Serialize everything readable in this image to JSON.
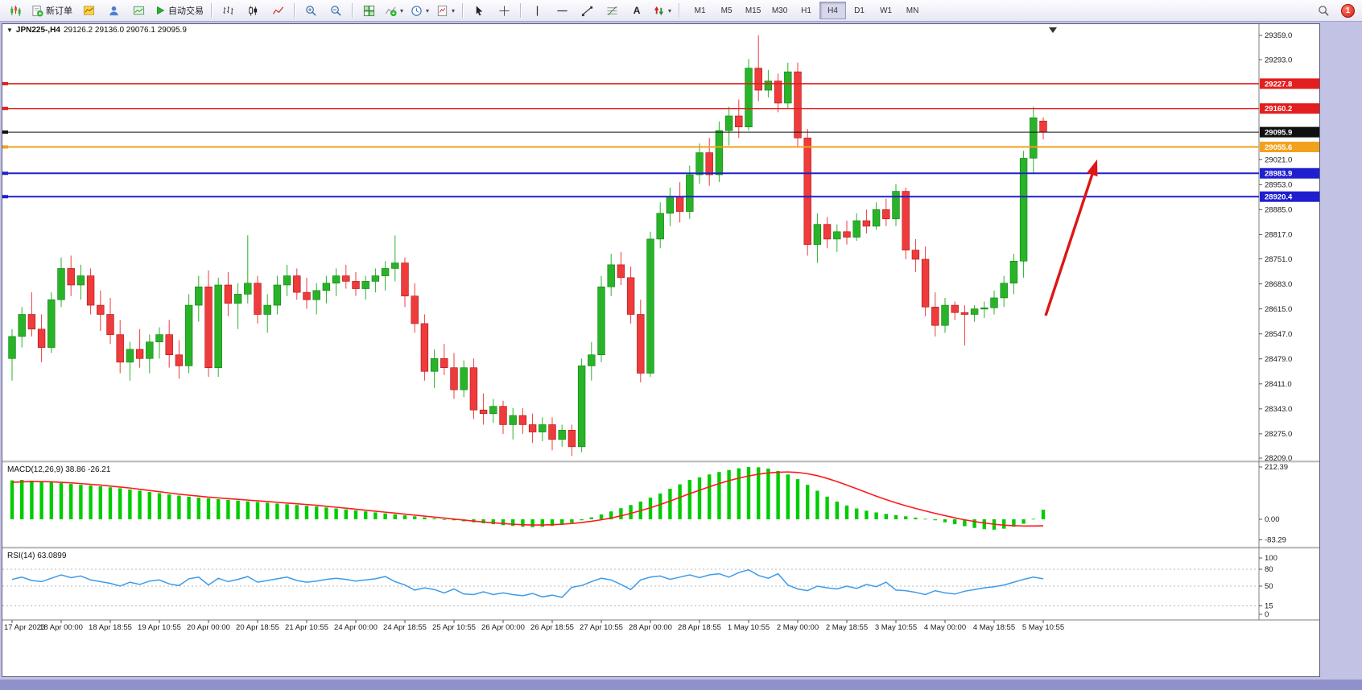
{
  "toolbar": {
    "new_order_label": "新订单",
    "auto_trading_label": "自动交易",
    "text_tool_label": "A",
    "timeframes": [
      "M1",
      "M5",
      "M15",
      "M30",
      "H1",
      "H4",
      "D1",
      "W1",
      "MN"
    ],
    "active_timeframe": "H4",
    "notification_count": "1"
  },
  "chart": {
    "symbol_period": "JPN225-,H4",
    "ohlc_text": "29126.2 29136.0 29076.1 29095.9",
    "title": "JPN225-,H4 29126.2 29136.0 29076.1 29095.9",
    "y_axis": {
      "max": 29359,
      "min": 28209,
      "ticks": [
        29359,
        29293,
        29021,
        28953,
        28885,
        28817,
        28751,
        28683,
        28615,
        28547,
        28479,
        28411,
        28343,
        28275,
        28209
      ]
    },
    "levels": [
      {
        "label": "29227.8",
        "price": 29227.8,
        "color": "#e31e1e",
        "text_color": "#ffffff",
        "width": 1.6
      },
      {
        "label": "29160.2",
        "price": 29160.2,
        "color": "#e31e1e",
        "text_color": "#ffffff",
        "width": 1.6
      },
      {
        "label": "29095.9",
        "price": 29095.9,
        "color": "#101010",
        "text_color": "#ffffff",
        "width": 1
      },
      {
        "label": "29055.6",
        "price": 29055.6,
        "color": "#f2a11c",
        "text_color": "#ffffff",
        "width": 2
      },
      {
        "label": "28983.9",
        "price": 28983.9,
        "color": "#1f1fd0",
        "text_color": "#ffffff",
        "width": 2
      },
      {
        "label": "28920.4",
        "price": 28920.4,
        "color": "#1f1fd0",
        "text_color": "#ffffff",
        "width": 2
      }
    ],
    "annotation_arrow": {
      "color": "#e01515"
    }
  },
  "chart_data": {
    "type": "candlestick",
    "symbol": "JPN225-",
    "timeframe": "H4",
    "up_color": "#29b329",
    "down_color": "#ef3b3b",
    "candles": [
      [
        28480,
        28560,
        28420,
        28540
      ],
      [
        28540,
        28620,
        28510,
        28600
      ],
      [
        28600,
        28660,
        28540,
        28560
      ],
      [
        28560,
        28600,
        28470,
        28510
      ],
      [
        28510,
        28660,
        28495,
        28640
      ],
      [
        28640,
        28755,
        28620,
        28725
      ],
      [
        28725,
        28760,
        28650,
        28680
      ],
      [
        28680,
        28735,
        28640,
        28705
      ],
      [
        28705,
        28725,
        28600,
        28625
      ],
      [
        28625,
        28665,
        28555,
        28600
      ],
      [
        28600,
        28645,
        28520,
        28545
      ],
      [
        28545,
        28585,
        28440,
        28470
      ],
      [
        28470,
        28525,
        28420,
        28505
      ],
      [
        28505,
        28560,
        28455,
        28480
      ],
      [
        28480,
        28545,
        28440,
        28525
      ],
      [
        28525,
        28565,
        28480,
        28545
      ],
      [
        28545,
        28585,
        28455,
        28490
      ],
      [
        28490,
        28530,
        28425,
        28460
      ],
      [
        28460,
        28655,
        28440,
        28625
      ],
      [
        28625,
        28705,
        28580,
        28675
      ],
      [
        28675,
        28720,
        28430,
        28455
      ],
      [
        28455,
        28700,
        28430,
        28680
      ],
      [
        28680,
        28715,
        28595,
        28630
      ],
      [
        28630,
        28685,
        28560,
        28655
      ],
      [
        28655,
        28815,
        28630,
        28685
      ],
      [
        28685,
        28705,
        28575,
        28600
      ],
      [
        28600,
        28655,
        28550,
        28625
      ],
      [
        28625,
        28705,
        28600,
        28680
      ],
      [
        28680,
        28735,
        28650,
        28705
      ],
      [
        28705,
        28725,
        28640,
        28660
      ],
      [
        28660,
        28700,
        28615,
        28640
      ],
      [
        28640,
        28685,
        28600,
        28665
      ],
      [
        28665,
        28705,
        28630,
        28685
      ],
      [
        28685,
        28725,
        28650,
        28705
      ],
      [
        28705,
        28735,
        28670,
        28690
      ],
      [
        28690,
        28715,
        28650,
        28670
      ],
      [
        28670,
        28705,
        28640,
        28690
      ],
      [
        28690,
        28725,
        28660,
        28705
      ],
      [
        28705,
        28745,
        28665,
        28725
      ],
      [
        28725,
        28815,
        28690,
        28740
      ],
      [
        28740,
        28755,
        28620,
        28650
      ],
      [
        28650,
        28685,
        28550,
        28575
      ],
      [
        28575,
        28600,
        28420,
        28445
      ],
      [
        28445,
        28505,
        28400,
        28480
      ],
      [
        28480,
        28520,
        28435,
        28455
      ],
      [
        28455,
        28495,
        28370,
        28395
      ],
      [
        28395,
        28475,
        28375,
        28455
      ],
      [
        28455,
        28480,
        28315,
        28340
      ],
      [
        28340,
        28385,
        28300,
        28330
      ],
      [
        28330,
        28370,
        28305,
        28350
      ],
      [
        28350,
        28365,
        28275,
        28300
      ],
      [
        28300,
        28345,
        28260,
        28325
      ],
      [
        28325,
        28345,
        28275,
        28300
      ],
      [
        28300,
        28330,
        28250,
        28280
      ],
      [
        28280,
        28320,
        28255,
        28300
      ],
      [
        28300,
        28320,
        28230,
        28260
      ],
      [
        28260,
        28300,
        28240,
        28285
      ],
      [
        28285,
        28300,
        28215,
        28240
      ],
      [
        28240,
        28480,
        28225,
        28460
      ],
      [
        28460,
        28525,
        28420,
        28490
      ],
      [
        28490,
        28705,
        28470,
        28675
      ],
      [
        28675,
        28765,
        28650,
        28735
      ],
      [
        28735,
        28770,
        28680,
        28700
      ],
      [
        28700,
        28730,
        28575,
        28600
      ],
      [
        28600,
        28640,
        28415,
        28440
      ],
      [
        28440,
        28825,
        28430,
        28805
      ],
      [
        28805,
        28905,
        28780,
        28875
      ],
      [
        28875,
        28945,
        28840,
        28920
      ],
      [
        28920,
        28960,
        28850,
        28880
      ],
      [
        28880,
        29005,
        28860,
        28980
      ],
      [
        28980,
        29065,
        28955,
        29040
      ],
      [
        29040,
        29080,
        28950,
        28980
      ],
      [
        28980,
        29125,
        28960,
        29100
      ],
      [
        29100,
        29165,
        29060,
        29140
      ],
      [
        29140,
        29185,
        29080,
        29110
      ],
      [
        29110,
        29295,
        29100,
        29270
      ],
      [
        29270,
        29359,
        29180,
        29210
      ],
      [
        29210,
        29265,
        29190,
        29235
      ],
      [
        29235,
        29255,
        29150,
        29175
      ],
      [
        29175,
        29285,
        29160,
        29260
      ],
      [
        29260,
        29285,
        29055,
        29080
      ],
      [
        29080,
        29105,
        28760,
        28790
      ],
      [
        28790,
        28875,
        28740,
        28845
      ],
      [
        28845,
        28865,
        28780,
        28805
      ],
      [
        28805,
        28845,
        28770,
        28825
      ],
      [
        28825,
        28855,
        28790,
        28810
      ],
      [
        28810,
        28875,
        28800,
        28855
      ],
      [
        28855,
        28885,
        28820,
        28840
      ],
      [
        28840,
        28905,
        28830,
        28885
      ],
      [
        28885,
        28915,
        28840,
        28860
      ],
      [
        28860,
        28955,
        28840,
        28935
      ],
      [
        28935,
        28945,
        28750,
        28775
      ],
      [
        28775,
        28805,
        28715,
        28750
      ],
      [
        28750,
        28785,
        28595,
        28620
      ],
      [
        28620,
        28660,
        28540,
        28570
      ],
      [
        28570,
        28645,
        28550,
        28625
      ],
      [
        28625,
        28635,
        28585,
        28605
      ],
      [
        28605,
        28625,
        28515,
        28600
      ],
      [
        28600,
        28625,
        28580,
        28615
      ],
      [
        28615,
        28635,
        28590,
        28618
      ],
      [
        28618,
        28665,
        28600,
        28645
      ],
      [
        28645,
        28705,
        28620,
        28685
      ],
      [
        28685,
        28765,
        28655,
        28745
      ],
      [
        28745,
        29045,
        28700,
        29025
      ],
      [
        29025,
        29165,
        28985,
        29135
      ],
      [
        29126.2,
        29136.0,
        29076.1,
        29095.9
      ]
    ],
    "time_labels": [
      "17 Apr 2023",
      "18 Apr 00:00",
      "18 Apr 18:55",
      "19 Apr 10:55",
      "20 Apr 00:00",
      "20 Apr 18:55",
      "21 Apr 10:55",
      "24 Apr 00:00",
      "24 Apr 18:55",
      "25 Apr 10:55",
      "26 Apr 00:00",
      "26 Apr 18:55",
      "27 Apr 10:55",
      "28 Apr 00:00",
      "28 Apr 18:55",
      "1 May 10:55",
      "2 May 00:00",
      "2 May 18:55",
      "3 May 10:55",
      "4 May 00:00",
      "4 May 18:55",
      "5 May 10:55"
    ]
  },
  "macd": {
    "label_text": "MACD(12,26,9) 38.86 -26.21",
    "name": "MACD(12,26,9)",
    "main_value": "38.86",
    "signal_value": "-26.21",
    "axis_ticks": [
      212.39,
      0.0,
      -83.29
    ],
    "histogram_color": "#00cc00",
    "signal_color": "#ff1a1a",
    "histogram": [
      158,
      160,
      157,
      154,
      150,
      147,
      144,
      140,
      137,
      134,
      130,
      126,
      121,
      116,
      111,
      106,
      101,
      96,
      92,
      88,
      85,
      82,
      79,
      76,
      73,
      70,
      67,
      64,
      61,
      58,
      55,
      52,
      48,
      44,
      40,
      36,
      32,
      28,
      24,
      20,
      16,
      12,
      8,
      4,
      0,
      -4,
      -8,
      -12,
      -16,
      -20,
      -24,
      -27,
      -30,
      -32,
      -30,
      -27,
      -22,
      -14,
      -4,
      8,
      20,
      32,
      45,
      58,
      72,
      88,
      105,
      124,
      142,
      160,
      170,
      182,
      192,
      200,
      207,
      212,
      211,
      206,
      196,
      182,
      163,
      140,
      116,
      92,
      72,
      56,
      44,
      35,
      28,
      22,
      17,
      12,
      7,
      2,
      -4,
      -12,
      -20,
      -28,
      -35,
      -40,
      -42,
      -38,
      -30,
      -18,
      2,
      38.86
    ],
    "signal": [
      150,
      152,
      153,
      153,
      152,
      150,
      148,
      145,
      142,
      139,
      135,
      131,
      127,
      122,
      117,
      112,
      107,
      102,
      98,
      94,
      90,
      87,
      84,
      81,
      78,
      75,
      72,
      69,
      66,
      63,
      60,
      57,
      53,
      49,
      45,
      41,
      37,
      33,
      29,
      25,
      21,
      17,
      13,
      9,
      5,
      1,
      -3,
      -7,
      -11,
      -14,
      -17,
      -20,
      -22,
      -23,
      -23,
      -22,
      -20,
      -17,
      -13,
      -8,
      -2,
      5,
      14,
      24,
      35,
      47,
      60,
      74,
      89,
      104,
      118,
      132,
      145,
      157,
      167,
      176,
      183,
      188,
      191,
      192,
      190,
      185,
      177,
      166,
      153,
      139,
      124,
      109,
      94,
      80,
      67,
      55,
      44,
      34,
      24,
      15,
      6,
      -2,
      -9,
      -15,
      -20,
      -24,
      -26,
      -27,
      -27,
      -26.21
    ]
  },
  "rsi": {
    "label_text": "RSI(14) 63.0899",
    "name": "RSI(14)",
    "value": "63.0899",
    "axis_ticks": [
      100,
      80,
      50,
      15,
      0
    ],
    "levels": [
      80,
      50,
      15
    ],
    "line_color": "#3d9bea",
    "values": [
      62,
      66,
      60,
      58,
      64,
      70,
      65,
      68,
      61,
      58,
      55,
      50,
      57,
      53,
      59,
      61,
      54,
      51,
      63,
      66,
      52,
      64,
      58,
      62,
      67,
      57,
      60,
      63,
      66,
      60,
      57,
      59,
      62,
      64,
      62,
      59,
      61,
      63,
      67,
      58,
      52,
      43,
      47,
      44,
      38,
      45,
      36,
      35,
      40,
      35,
      38,
      35,
      33,
      37,
      31,
      34,
      30,
      48,
      51,
      58,
      64,
      61,
      53,
      44,
      61,
      66,
      68,
      62,
      66,
      70,
      65,
      70,
      72,
      66,
      74,
      79,
      69,
      64,
      72,
      52,
      45,
      42,
      50,
      47,
      45,
      50,
      46,
      53,
      49,
      57,
      43,
      42,
      39,
      35,
      42,
      38,
      36,
      41,
      44,
      47,
      49,
      52,
      57,
      62,
      66,
      63.09
    ]
  }
}
